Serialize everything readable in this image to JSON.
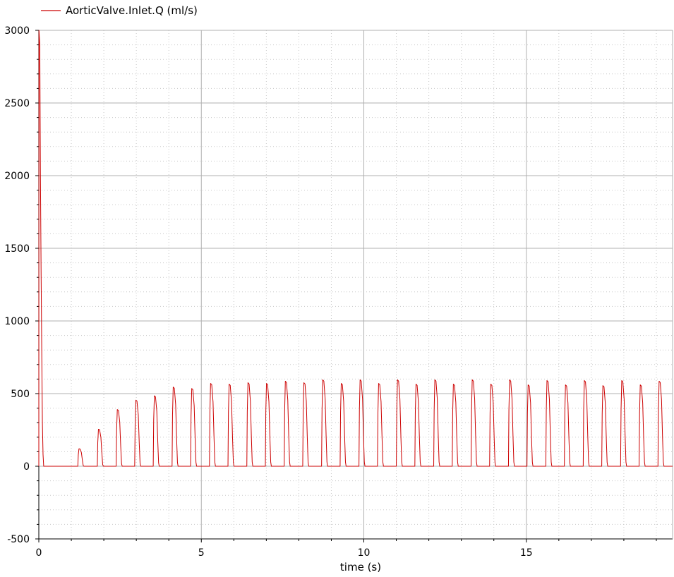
{
  "chart_data": {
    "type": "line",
    "xlabel": "time (s)",
    "ylabel": "",
    "xlim": [
      0,
      19.5
    ],
    "ylim": [
      -500,
      3000
    ],
    "x_ticks": [
      0,
      5,
      10,
      15
    ],
    "y_ticks": [
      -500,
      0,
      500,
      1000,
      1500,
      2000,
      2500,
      3000
    ],
    "grid": true,
    "minor_grid": true,
    "legend_position": "top-left",
    "series": [
      {
        "name": "AorticValve.Inlet.Q (ml/s)",
        "color": "#cc0000",
        "initial_spike": [
          [
            0,
            0
          ],
          [
            0.005,
            3000
          ],
          [
            0.03,
            2900
          ],
          [
            0.05,
            2000
          ],
          [
            0.07,
            1340
          ],
          [
            0.09,
            800
          ],
          [
            0.11,
            300
          ],
          [
            0.13,
            80
          ],
          [
            0.15,
            0
          ]
        ],
        "pulses": [
          {
            "t": 1.2,
            "peak": 120
          },
          {
            "t": 1.8,
            "peak": 255
          },
          {
            "t": 2.38,
            "peak": 390
          },
          {
            "t": 2.95,
            "peak": 455
          },
          {
            "t": 3.52,
            "peak": 485
          },
          {
            "t": 4.1,
            "peak": 545
          },
          {
            "t": 4.67,
            "peak": 535
          },
          {
            "t": 5.25,
            "peak": 570
          },
          {
            "t": 5.82,
            "peak": 565
          },
          {
            "t": 6.4,
            "peak": 575
          },
          {
            "t": 6.97,
            "peak": 570
          },
          {
            "t": 7.55,
            "peak": 585
          },
          {
            "t": 8.12,
            "peak": 575
          },
          {
            "t": 8.7,
            "peak": 595
          },
          {
            "t": 9.27,
            "peak": 570
          },
          {
            "t": 9.85,
            "peak": 595
          },
          {
            "t": 10.42,
            "peak": 570
          },
          {
            "t": 11.0,
            "peak": 595
          },
          {
            "t": 11.57,
            "peak": 565
          },
          {
            "t": 12.15,
            "peak": 595
          },
          {
            "t": 12.72,
            "peak": 565
          },
          {
            "t": 13.3,
            "peak": 595
          },
          {
            "t": 13.87,
            "peak": 565
          },
          {
            "t": 14.45,
            "peak": 595
          },
          {
            "t": 15.02,
            "peak": 560
          },
          {
            "t": 15.6,
            "peak": 590
          },
          {
            "t": 16.17,
            "peak": 560
          },
          {
            "t": 16.75,
            "peak": 590
          },
          {
            "t": 17.32,
            "peak": 555
          },
          {
            "t": 17.9,
            "peak": 590
          },
          {
            "t": 18.47,
            "peak": 560
          },
          {
            "t": 19.05,
            "peak": 585
          }
        ]
      }
    ]
  }
}
